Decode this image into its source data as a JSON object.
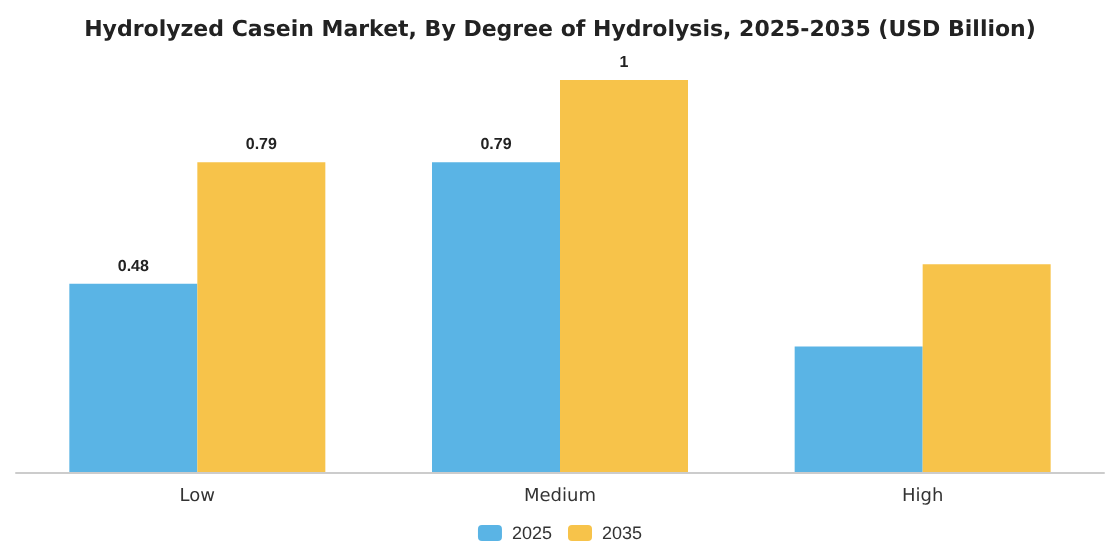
{
  "chart_data": {
    "type": "bar",
    "title": "Hydrolyzed Casein Market, By Degree of Hydrolysis, 2025-2035 (USD Billion)",
    "categories": [
      "Low",
      "Medium",
      "High"
    ],
    "series": [
      {
        "name": "2025",
        "color": "#5ab4e5",
        "values": [
          0.48,
          0.79,
          0.32
        ],
        "value_labels": [
          "0.48",
          "0.79",
          null
        ]
      },
      {
        "name": "2035",
        "color": "#f7c34a",
        "values": [
          0.79,
          1,
          0.53
        ],
        "value_labels": [
          "0.79",
          "1",
          null
        ]
      }
    ],
    "legend": "bottom"
  }
}
